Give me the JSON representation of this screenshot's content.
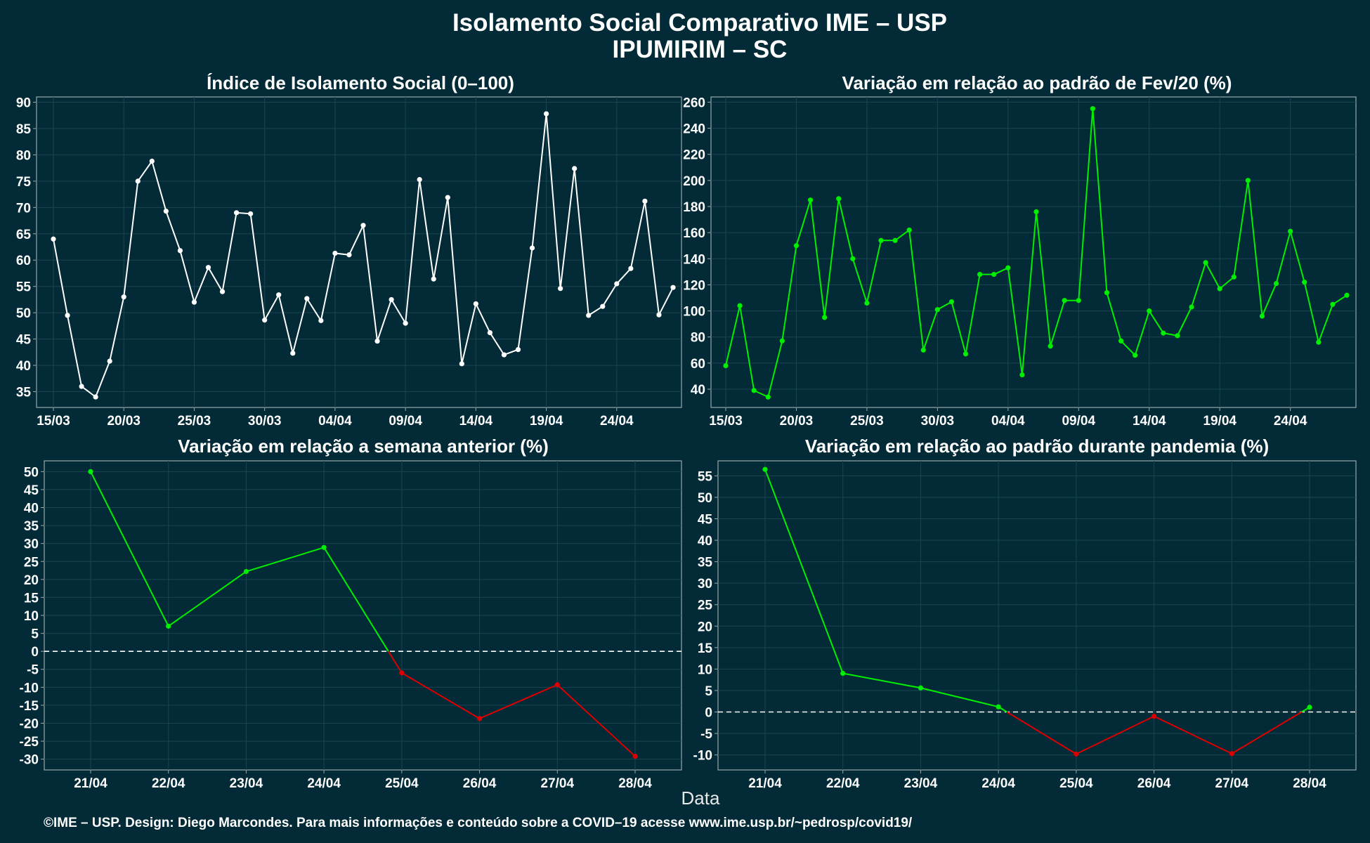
{
  "title": "Isolamento Social Comparativo IME – USP",
  "subtitle": "IPUMIRIM – SC",
  "xlabel": "Data",
  "caption": "©IME – USP. Design: Diego Marcondes. Para mais informações e conteúdo sobre a COVID–19 acesse www.ime.usp.br/~pedrosp/covid19/",
  "colors": {
    "background": "#022b37",
    "white_line": "#ffffff",
    "green": "#00ee00",
    "red": "#dd0000"
  },
  "chart_data": [
    {
      "type": "line",
      "title": "Índice de Isolamento Social (0–100)",
      "x_ticks": [
        "15/03",
        "20/03",
        "25/03",
        "30/03",
        "04/04",
        "09/04",
        "14/04",
        "19/04",
        "24/04"
      ],
      "ylim": [
        32,
        91
      ],
      "y_ticks": [
        35,
        40,
        45,
        50,
        55,
        60,
        65,
        70,
        75,
        80,
        85,
        90
      ],
      "grid": true,
      "series": [
        {
          "color": "#ffffff",
          "values": [
            64,
            49.5,
            36,
            34,
            40.8,
            53,
            75,
            78.8,
            69.3,
            61.8,
            52,
            58.6,
            54,
            69,
            68.8,
            48.6,
            53.4,
            42.3,
            52.7,
            48.5,
            61.3,
            61,
            66.6,
            44.6,
            52.5,
            48,
            75.3,
            56.4,
            71.9,
            40.3,
            51.7,
            46.2,
            42,
            43,
            62.3,
            87.8,
            54.6,
            77.4,
            49.5,
            51.2,
            55.5,
            58.4,
            71.2,
            49.6,
            54.8
          ]
        }
      ]
    },
    {
      "type": "line",
      "title": "Variação em relação ao padrão de Fev/20 (%)",
      "x_ticks": [
        "15/03",
        "20/03",
        "25/03",
        "30/03",
        "04/04",
        "09/04",
        "14/04",
        "19/04",
        "24/04"
      ],
      "ylim": [
        26,
        264
      ],
      "y_ticks": [
        40,
        60,
        80,
        100,
        120,
        140,
        160,
        180,
        200,
        220,
        240,
        260
      ],
      "grid": true,
      "series": [
        {
          "color": "#00ee00",
          "values": [
            58,
            104,
            39,
            34,
            77,
            150,
            185,
            95,
            186,
            140,
            106,
            154,
            154,
            162,
            70,
            101,
            107,
            67,
            128,
            128,
            133,
            51,
            176,
            73,
            108,
            108,
            255,
            114,
            77,
            66,
            100,
            83,
            81,
            103,
            137,
            117,
            126,
            200,
            96,
            121,
            161,
            122,
            76,
            105,
            112
          ]
        }
      ]
    },
    {
      "type": "line",
      "title": "Variação em relação a semana anterior (%)",
      "categories": [
        "21/04",
        "22/04",
        "23/04",
        "24/04",
        "25/04",
        "26/04",
        "27/04",
        "28/04"
      ],
      "values": [
        50,
        7,
        22.2,
        28.9,
        -6,
        -18.7,
        -9.3,
        -29.2
      ],
      "ylim": [
        -33,
        53
      ],
      "y_ticks": [
        -30,
        -25,
        -20,
        -15,
        -10,
        -5,
        0,
        5,
        10,
        15,
        20,
        25,
        30,
        35,
        40,
        45,
        50
      ],
      "reference_line": 0,
      "positive_color": "#00ee00",
      "negative_color": "#dd0000",
      "grid": true
    },
    {
      "type": "line",
      "title": "Variação em relação ao padrão durante pandemia (%)",
      "categories": [
        "21/04",
        "22/04",
        "23/04",
        "24/04",
        "25/04",
        "26/04",
        "27/04",
        "28/04"
      ],
      "values": [
        56.5,
        9,
        5.6,
        1.2,
        -9.8,
        -1,
        -9.7,
        1.1
      ],
      "ylim": [
        -13.5,
        58.5
      ],
      "y_ticks": [
        -10,
        -5,
        0,
        5,
        10,
        15,
        20,
        25,
        30,
        35,
        40,
        45,
        50,
        55
      ],
      "reference_line": 0,
      "positive_color": "#00ee00",
      "negative_color": "#dd0000",
      "grid": true
    }
  ]
}
